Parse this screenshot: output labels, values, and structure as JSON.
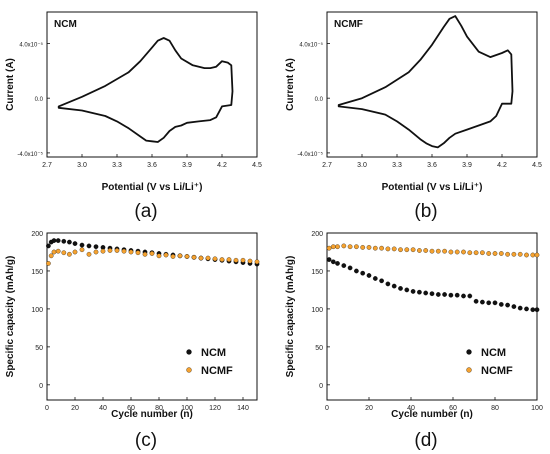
{
  "colors": {
    "ncm": "#111111",
    "ncmf": "#f5a230"
  },
  "chart_data": [
    {
      "id": "a",
      "type": "line",
      "panel_label": "(a)",
      "annotation": "NCM",
      "xlabel": "Potential (V vs Li/Li⁺)",
      "ylabel": "Current (A)",
      "xlim": [
        2.7,
        4.5
      ],
      "ylim": [
        -4.3e-05,
        6.3e-05
      ],
      "x_ticks": [
        "2.7",
        "3.0",
        "3.3",
        "3.6",
        "3.9",
        "4.2",
        "4.5"
      ],
      "y_ticks": [
        {
          "value": 4e-05,
          "label": "4.0x10⁻⁵"
        },
        {
          "value": 0,
          "label": "0.0"
        },
        {
          "value": -4e-05,
          "label": "-4.0x10⁻⁵"
        }
      ],
      "x": [
        2.8,
        3.0,
        3.2,
        3.4,
        3.5,
        3.6,
        3.65,
        3.7,
        3.75,
        3.8,
        3.85,
        3.95,
        4.05,
        4.1,
        4.15,
        4.2,
        4.25,
        4.28,
        4.29,
        4.28,
        4.2,
        4.15,
        4.1,
        4.0,
        3.9,
        3.85,
        3.8,
        3.75,
        3.7,
        3.65,
        3.6,
        3.55,
        3.5,
        3.4,
        3.3,
        3.2,
        3.0,
        2.8
      ],
      "y": [
        -6e-06,
        1e-06,
        9e-06,
        1.9e-05,
        2.7e-05,
        3.7e-05,
        4.2e-05,
        4.4e-05,
        4.2e-05,
        3.5e-05,
        2.9e-05,
        2.4e-05,
        2.2e-05,
        2.2e-05,
        2.3e-05,
        2.7e-05,
        2.6e-05,
        2.4e-05,
        5e-06,
        -5e-06,
        -6e-06,
        -1.4e-05,
        -1.6e-05,
        -1.7e-05,
        -1.8e-05,
        -2e-05,
        -2.1e-05,
        -2.4e-05,
        -2.9e-05,
        -3.2e-05,
        -3.15e-05,
        -3.1e-05,
        -2.8e-05,
        -2.2e-05,
        -1.7e-05,
        -1.3e-05,
        -9e-06,
        -7e-06
      ]
    },
    {
      "id": "b",
      "type": "line",
      "panel_label": "(b)",
      "annotation": "NCMF",
      "xlabel": "Potential (V vs Li/Li⁺)",
      "ylabel": "Current (A)",
      "xlim": [
        2.7,
        4.5
      ],
      "ylim": [
        -4.3e-05,
        6.3e-05
      ],
      "x_ticks": [
        "2.7",
        "3.0",
        "3.3",
        "3.6",
        "3.9",
        "4.2",
        "4.5"
      ],
      "y_ticks": [
        {
          "value": 4e-05,
          "label": "4.0x10⁻⁵"
        },
        {
          "value": 0,
          "label": "0.0"
        },
        {
          "value": -4e-05,
          "label": "-4.0x10⁻⁵"
        }
      ],
      "x": [
        2.8,
        3.0,
        3.2,
        3.4,
        3.5,
        3.6,
        3.7,
        3.75,
        3.8,
        3.85,
        3.9,
        4.0,
        4.1,
        4.2,
        4.25,
        4.28,
        4.29,
        4.28,
        4.2,
        4.15,
        4.1,
        4.0,
        3.9,
        3.8,
        3.75,
        3.7,
        3.65,
        3.6,
        3.55,
        3.5,
        3.4,
        3.3,
        3.2,
        3.0,
        2.8
      ],
      "y": [
        -5e-06,
        0,
        8e-06,
        1.9e-05,
        2.8e-05,
        3.9e-05,
        5.2e-05,
        5.8e-05,
        6e-05,
        5.3e-05,
        4.5e-05,
        3.4e-05,
        3e-05,
        3.3e-05,
        3.5e-05,
        3.2e-05,
        5e-06,
        -4e-06,
        -4e-06,
        -1.3e-05,
        -1.7e-05,
        -2e-05,
        -2.3e-05,
        -2.6e-05,
        -2.9e-05,
        -3.3e-05,
        -3.6e-05,
        -3.5e-05,
        -3.3e-05,
        -3e-05,
        -2.3e-05,
        -1.7e-05,
        -1.2e-05,
        -8e-06,
        -6e-06
      ]
    },
    {
      "id": "c",
      "type": "scatter",
      "panel_label": "(c)",
      "xlabel": "Cycle number (n)",
      "ylabel": "Specific capacity (mAh/g)",
      "xlim": [
        0,
        150
      ],
      "ylim": [
        -20,
        200
      ],
      "x_ticks": [
        0,
        20,
        40,
        60,
        80,
        100,
        120,
        140
      ],
      "y_ticks": [
        0,
        50,
        100,
        150,
        200
      ],
      "legend": "bottom-right",
      "series": [
        {
          "name": "NCM",
          "x": [
            1,
            3,
            5,
            8,
            12,
            16,
            20,
            25,
            30,
            35,
            40,
            45,
            50,
            55,
            60,
            65,
            70,
            75,
            80,
            85,
            90,
            95,
            100,
            105,
            110,
            115,
            120,
            125,
            130,
            135,
            140,
            145,
            150
          ],
          "values": [
            183,
            188,
            190,
            190,
            189,
            188,
            186,
            184,
            183,
            182,
            181,
            180,
            179,
            178,
            177,
            176,
            175,
            174,
            173,
            172,
            171,
            170,
            169,
            168,
            167,
            166,
            165,
            164,
            163,
            162,
            161,
            160,
            159
          ]
        },
        {
          "name": "NCMF",
          "x": [
            1,
            3,
            5,
            8,
            12,
            16,
            20,
            25,
            30,
            35,
            40,
            45,
            50,
            55,
            60,
            65,
            70,
            75,
            80,
            85,
            90,
            95,
            100,
            105,
            110,
            115,
            120,
            125,
            130,
            135,
            140,
            145,
            150
          ],
          "values": [
            160,
            170,
            175,
            176,
            174,
            172,
            175,
            178,
            172,
            175,
            176,
            177,
            177,
            176,
            175,
            174,
            172,
            173,
            170,
            171,
            169,
            170,
            169,
            168,
            167,
            167,
            166,
            165,
            165,
            164,
            164,
            163,
            162
          ]
        }
      ]
    },
    {
      "id": "d",
      "type": "scatter",
      "panel_label": "(d)",
      "xlabel": "Cycle number (n)",
      "ylabel": "Specific capacity (mAh/g)",
      "xlim": [
        0,
        100
      ],
      "ylim": [
        -20,
        200
      ],
      "x_ticks": [
        0,
        20,
        40,
        60,
        80,
        100
      ],
      "y_ticks": [
        0,
        50,
        100,
        150,
        200
      ],
      "legend": "bottom-right",
      "series": [
        {
          "name": "NCM",
          "x": [
            1,
            3,
            5,
            8,
            11,
            14,
            17,
            20,
            23,
            26,
            29,
            32,
            35,
            38,
            41,
            44,
            47,
            50,
            53,
            56,
            59,
            62,
            65,
            68,
            71,
            74,
            77,
            80,
            83,
            86,
            89,
            92,
            95,
            98,
            100
          ],
          "values": [
            165,
            162,
            160,
            157,
            154,
            150,
            147,
            144,
            140,
            137,
            133,
            130,
            127,
            125,
            123,
            122,
            121,
            120,
            119,
            119,
            118,
            118,
            117,
            117,
            110,
            109,
            108,
            108,
            106,
            105,
            103,
            101,
            100,
            99,
            99
          ]
        },
        {
          "name": "NCMF",
          "x": [
            1,
            3,
            5,
            8,
            11,
            14,
            17,
            20,
            23,
            26,
            29,
            32,
            35,
            38,
            41,
            44,
            47,
            50,
            53,
            56,
            59,
            62,
            65,
            68,
            71,
            74,
            77,
            80,
            83,
            86,
            89,
            92,
            95,
            98,
            100
          ],
          "values": [
            180,
            182,
            182,
            183,
            182,
            182,
            181,
            181,
            180,
            180,
            179,
            179,
            178,
            178,
            178,
            177,
            177,
            176,
            176,
            176,
            175,
            175,
            175,
            174,
            174,
            174,
            173,
            173,
            173,
            172,
            172,
            172,
            171,
            171,
            171
          ]
        }
      ]
    }
  ]
}
